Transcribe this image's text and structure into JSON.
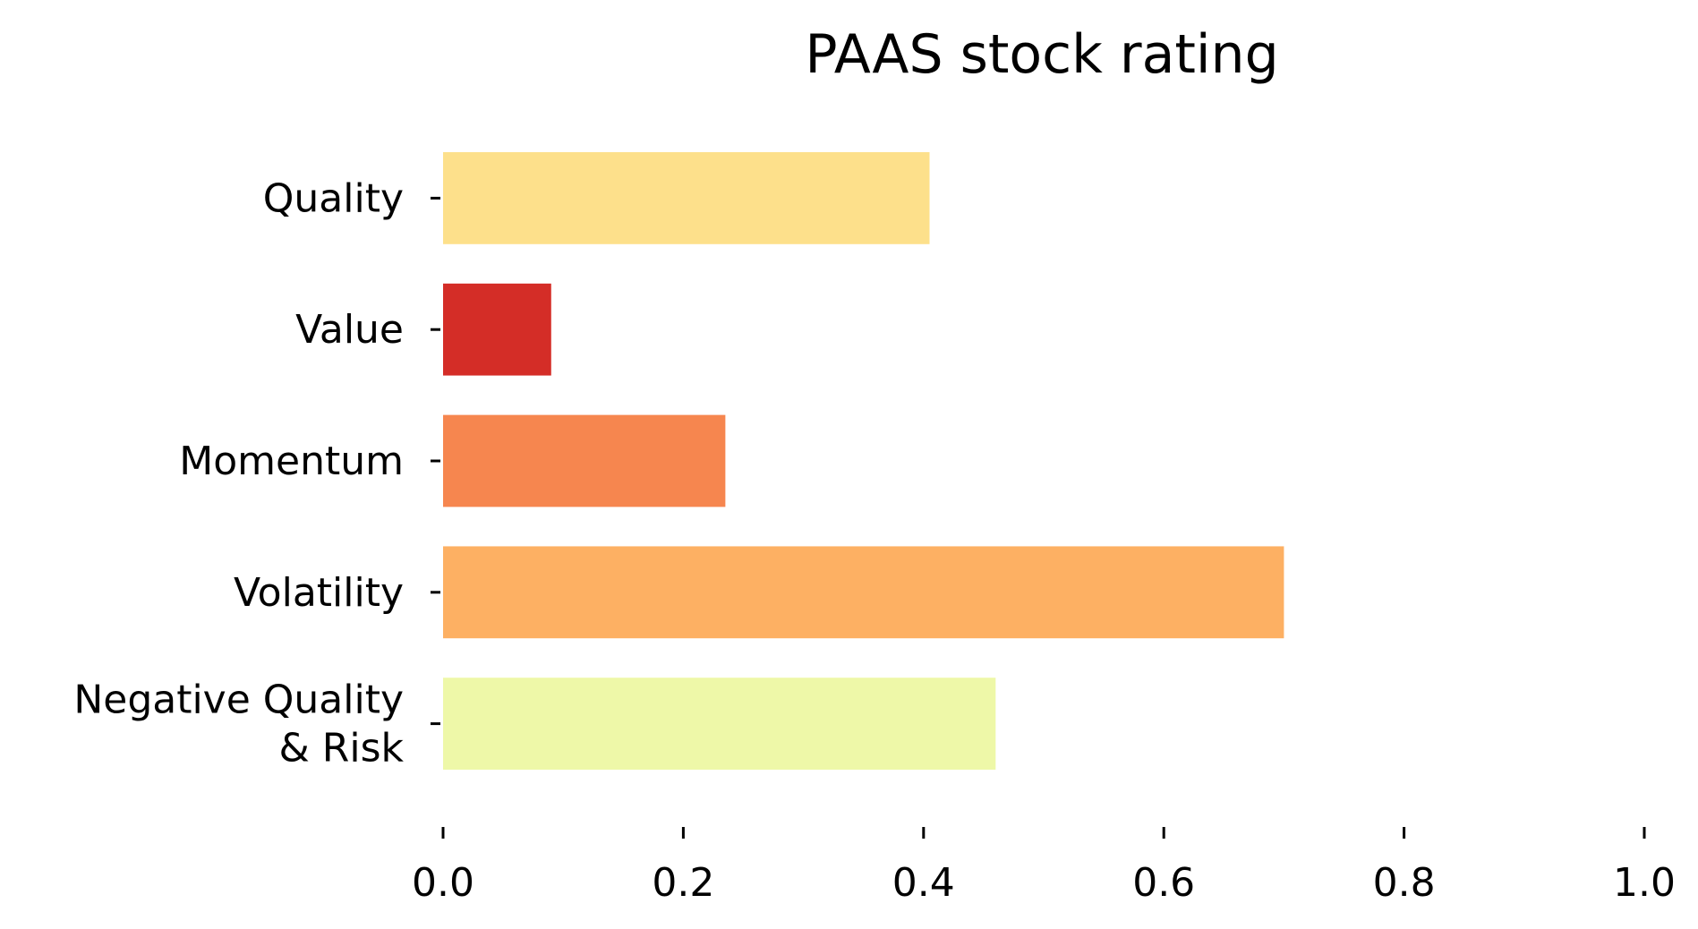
{
  "chart_data": {
    "type": "bar",
    "orientation": "horizontal",
    "title": "PAAS stock rating",
    "xlabel": "",
    "ylabel": "",
    "categories": [
      [
        "Quality"
      ],
      [
        "Value"
      ],
      [
        "Momentum"
      ],
      [
        "Volatility"
      ],
      [
        "Negative Quality",
        "& Risk"
      ]
    ],
    "values": [
      0.405,
      0.09,
      0.235,
      0.7,
      0.46
    ],
    "colors": [
      "#fde08b",
      "#d42d27",
      "#f6864f",
      "#fdb063",
      "#eef8a8"
    ],
    "xlim": [
      0.0,
      1.0
    ],
    "xticks": [
      "0.0",
      "0.2",
      "0.4",
      "0.6",
      "0.8",
      "1.0"
    ],
    "grid": false,
    "legend": "none"
  }
}
